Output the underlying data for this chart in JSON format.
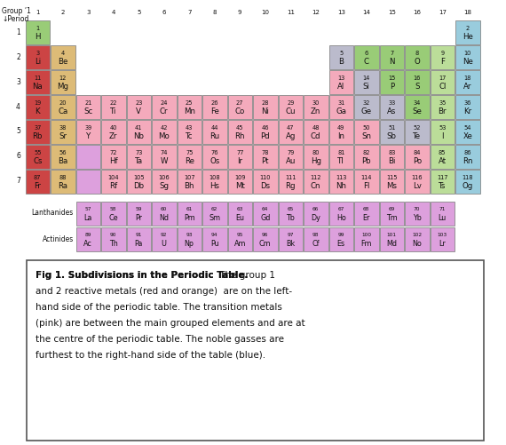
{
  "colors": {
    "group1": "#cc4444",
    "group2": "#ddbb77",
    "transition": "#f4aabc",
    "lanthanide_actinide": "#dda0dd",
    "nonmetal": "#99cc77",
    "halogen": "#bbdd99",
    "noble_gas": "#99ccdd",
    "metalloid": "#bbbbcc",
    "other_metal": "#f4aabc",
    "empty": "#ffffff"
  },
  "elements": [
    {
      "num": 1,
      "sym": "H",
      "period": 1,
      "group": 1,
      "color": "nonmetal"
    },
    {
      "num": 2,
      "sym": "He",
      "period": 1,
      "group": 18,
      "color": "noble_gas"
    },
    {
      "num": 3,
      "sym": "Li",
      "period": 2,
      "group": 1,
      "color": "group1"
    },
    {
      "num": 4,
      "sym": "Be",
      "period": 2,
      "group": 2,
      "color": "group2"
    },
    {
      "num": 5,
      "sym": "B",
      "period": 2,
      "group": 13,
      "color": "metalloid"
    },
    {
      "num": 6,
      "sym": "C",
      "period": 2,
      "group": 14,
      "color": "nonmetal"
    },
    {
      "num": 7,
      "sym": "N",
      "period": 2,
      "group": 15,
      "color": "nonmetal"
    },
    {
      "num": 8,
      "sym": "O",
      "period": 2,
      "group": 16,
      "color": "nonmetal"
    },
    {
      "num": 9,
      "sym": "F",
      "period": 2,
      "group": 17,
      "color": "halogen"
    },
    {
      "num": 10,
      "sym": "Ne",
      "period": 2,
      "group": 18,
      "color": "noble_gas"
    },
    {
      "num": 11,
      "sym": "Na",
      "period": 3,
      "group": 1,
      "color": "group1"
    },
    {
      "num": 12,
      "sym": "Mg",
      "period": 3,
      "group": 2,
      "color": "group2"
    },
    {
      "num": 13,
      "sym": "Al",
      "period": 3,
      "group": 13,
      "color": "other_metal"
    },
    {
      "num": 14,
      "sym": "Si",
      "period": 3,
      "group": 14,
      "color": "metalloid"
    },
    {
      "num": 15,
      "sym": "P",
      "period": 3,
      "group": 15,
      "color": "nonmetal"
    },
    {
      "num": 16,
      "sym": "S",
      "period": 3,
      "group": 16,
      "color": "nonmetal"
    },
    {
      "num": 17,
      "sym": "Cl",
      "period": 3,
      "group": 17,
      "color": "halogen"
    },
    {
      "num": 18,
      "sym": "Ar",
      "period": 3,
      "group": 18,
      "color": "noble_gas"
    },
    {
      "num": 19,
      "sym": "K",
      "period": 4,
      "group": 1,
      "color": "group1"
    },
    {
      "num": 20,
      "sym": "Ca",
      "period": 4,
      "group": 2,
      "color": "group2"
    },
    {
      "num": 21,
      "sym": "Sc",
      "period": 4,
      "group": 3,
      "color": "transition"
    },
    {
      "num": 22,
      "sym": "Ti",
      "period": 4,
      "group": 4,
      "color": "transition"
    },
    {
      "num": 23,
      "sym": "V",
      "period": 4,
      "group": 5,
      "color": "transition"
    },
    {
      "num": 24,
      "sym": "Cr",
      "period": 4,
      "group": 6,
      "color": "transition"
    },
    {
      "num": 25,
      "sym": "Mn",
      "period": 4,
      "group": 7,
      "color": "transition"
    },
    {
      "num": 26,
      "sym": "Fe",
      "period": 4,
      "group": 8,
      "color": "transition"
    },
    {
      "num": 27,
      "sym": "Co",
      "period": 4,
      "group": 9,
      "color": "transition"
    },
    {
      "num": 28,
      "sym": "Ni",
      "period": 4,
      "group": 10,
      "color": "transition"
    },
    {
      "num": 29,
      "sym": "Cu",
      "period": 4,
      "group": 11,
      "color": "transition"
    },
    {
      "num": 30,
      "sym": "Zn",
      "period": 4,
      "group": 12,
      "color": "transition"
    },
    {
      "num": 31,
      "sym": "Ga",
      "period": 4,
      "group": 13,
      "color": "other_metal"
    },
    {
      "num": 32,
      "sym": "Ge",
      "period": 4,
      "group": 14,
      "color": "metalloid"
    },
    {
      "num": 33,
      "sym": "As",
      "period": 4,
      "group": 15,
      "color": "metalloid"
    },
    {
      "num": 34,
      "sym": "Se",
      "period": 4,
      "group": 16,
      "color": "nonmetal"
    },
    {
      "num": 35,
      "sym": "Br",
      "period": 4,
      "group": 17,
      "color": "halogen"
    },
    {
      "num": 36,
      "sym": "Kr",
      "period": 4,
      "group": 18,
      "color": "noble_gas"
    },
    {
      "num": 37,
      "sym": "Rb",
      "period": 5,
      "group": 1,
      "color": "group1"
    },
    {
      "num": 38,
      "sym": "Sr",
      "period": 5,
      "group": 2,
      "color": "group2"
    },
    {
      "num": 39,
      "sym": "Y",
      "period": 5,
      "group": 3,
      "color": "transition"
    },
    {
      "num": 40,
      "sym": "Zr",
      "period": 5,
      "group": 4,
      "color": "transition"
    },
    {
      "num": 41,
      "sym": "Nb",
      "period": 5,
      "group": 5,
      "color": "transition"
    },
    {
      "num": 42,
      "sym": "Mo",
      "period": 5,
      "group": 6,
      "color": "transition"
    },
    {
      "num": 43,
      "sym": "Tc",
      "period": 5,
      "group": 7,
      "color": "transition"
    },
    {
      "num": 44,
      "sym": "Ru",
      "period": 5,
      "group": 8,
      "color": "transition"
    },
    {
      "num": 45,
      "sym": "Rh",
      "period": 5,
      "group": 9,
      "color": "transition"
    },
    {
      "num": 46,
      "sym": "Pd",
      "period": 5,
      "group": 10,
      "color": "transition"
    },
    {
      "num": 47,
      "sym": "Ag",
      "period": 5,
      "group": 11,
      "color": "transition"
    },
    {
      "num": 48,
      "sym": "Cd",
      "period": 5,
      "group": 12,
      "color": "transition"
    },
    {
      "num": 49,
      "sym": "In",
      "period": 5,
      "group": 13,
      "color": "other_metal"
    },
    {
      "num": 50,
      "sym": "Sn",
      "period": 5,
      "group": 14,
      "color": "other_metal"
    },
    {
      "num": 51,
      "sym": "Sb",
      "period": 5,
      "group": 15,
      "color": "metalloid"
    },
    {
      "num": 52,
      "sym": "Te",
      "period": 5,
      "group": 16,
      "color": "metalloid"
    },
    {
      "num": 53,
      "sym": "I",
      "period": 5,
      "group": 17,
      "color": "halogen"
    },
    {
      "num": 54,
      "sym": "Xe",
      "period": 5,
      "group": 18,
      "color": "noble_gas"
    },
    {
      "num": 55,
      "sym": "Cs",
      "period": 6,
      "group": 1,
      "color": "group1"
    },
    {
      "num": 56,
      "sym": "Ba",
      "period": 6,
      "group": 2,
      "color": "group2"
    },
    {
      "num": -1,
      "sym": "",
      "period": 6,
      "group": 3,
      "color": "lanthanide_actinide"
    },
    {
      "num": 72,
      "sym": "Hf",
      "period": 6,
      "group": 4,
      "color": "transition"
    },
    {
      "num": 73,
      "sym": "Ta",
      "period": 6,
      "group": 5,
      "color": "transition"
    },
    {
      "num": 74,
      "sym": "W",
      "period": 6,
      "group": 6,
      "color": "transition"
    },
    {
      "num": 75,
      "sym": "Re",
      "period": 6,
      "group": 7,
      "color": "transition"
    },
    {
      "num": 76,
      "sym": "Os",
      "period": 6,
      "group": 8,
      "color": "transition"
    },
    {
      "num": 77,
      "sym": "Ir",
      "period": 6,
      "group": 9,
      "color": "transition"
    },
    {
      "num": 78,
      "sym": "Pt",
      "period": 6,
      "group": 10,
      "color": "transition"
    },
    {
      "num": 79,
      "sym": "Au",
      "period": 6,
      "group": 11,
      "color": "transition"
    },
    {
      "num": 80,
      "sym": "Hg",
      "period": 6,
      "group": 12,
      "color": "transition"
    },
    {
      "num": 81,
      "sym": "Tl",
      "period": 6,
      "group": 13,
      "color": "other_metal"
    },
    {
      "num": 82,
      "sym": "Pb",
      "period": 6,
      "group": 14,
      "color": "other_metal"
    },
    {
      "num": 83,
      "sym": "Bi",
      "period": 6,
      "group": 15,
      "color": "other_metal"
    },
    {
      "num": 84,
      "sym": "Po",
      "period": 6,
      "group": 16,
      "color": "other_metal"
    },
    {
      "num": 85,
      "sym": "At",
      "period": 6,
      "group": 17,
      "color": "halogen"
    },
    {
      "num": 86,
      "sym": "Rn",
      "period": 6,
      "group": 18,
      "color": "noble_gas"
    },
    {
      "num": 87,
      "sym": "Fr",
      "period": 7,
      "group": 1,
      "color": "group1"
    },
    {
      "num": 88,
      "sym": "Ra",
      "period": 7,
      "group": 2,
      "color": "group2"
    },
    {
      "num": -2,
      "sym": "",
      "period": 7,
      "group": 3,
      "color": "lanthanide_actinide"
    },
    {
      "num": 104,
      "sym": "Rf",
      "period": 7,
      "group": 4,
      "color": "transition"
    },
    {
      "num": 105,
      "sym": "Db",
      "period": 7,
      "group": 5,
      "color": "transition"
    },
    {
      "num": 106,
      "sym": "Sg",
      "period": 7,
      "group": 6,
      "color": "transition"
    },
    {
      "num": 107,
      "sym": "Bh",
      "period": 7,
      "group": 7,
      "color": "transition"
    },
    {
      "num": 108,
      "sym": "Hs",
      "period": 7,
      "group": 8,
      "color": "transition"
    },
    {
      "num": 109,
      "sym": "Mt",
      "period": 7,
      "group": 9,
      "color": "transition"
    },
    {
      "num": 110,
      "sym": "Ds",
      "period": 7,
      "group": 10,
      "color": "transition"
    },
    {
      "num": 111,
      "sym": "Rg",
      "period": 7,
      "group": 11,
      "color": "transition"
    },
    {
      "num": 112,
      "sym": "Cn",
      "period": 7,
      "group": 12,
      "color": "transition"
    },
    {
      "num": 113,
      "sym": "Nh",
      "period": 7,
      "group": 13,
      "color": "other_metal"
    },
    {
      "num": 114,
      "sym": "Fl",
      "period": 7,
      "group": 14,
      "color": "other_metal"
    },
    {
      "num": 115,
      "sym": "Ms",
      "period": 7,
      "group": 15,
      "color": "other_metal"
    },
    {
      "num": 116,
      "sym": "Lv",
      "period": 7,
      "group": 16,
      "color": "other_metal"
    },
    {
      "num": 117,
      "sym": "Ts",
      "period": 7,
      "group": 17,
      "color": "halogen"
    },
    {
      "num": 118,
      "sym": "Og",
      "period": 7,
      "group": 18,
      "color": "noble_gas"
    },
    {
      "num": 57,
      "sym": "La",
      "period": "La",
      "group": 1,
      "color": "lanthanide_actinide"
    },
    {
      "num": 58,
      "sym": "Ce",
      "period": "La",
      "group": 2,
      "color": "lanthanide_actinide"
    },
    {
      "num": 59,
      "sym": "Pr",
      "period": "La",
      "group": 3,
      "color": "lanthanide_actinide"
    },
    {
      "num": 60,
      "sym": "Nd",
      "period": "La",
      "group": 4,
      "color": "lanthanide_actinide"
    },
    {
      "num": 61,
      "sym": "Pm",
      "period": "La",
      "group": 5,
      "color": "lanthanide_actinide"
    },
    {
      "num": 62,
      "sym": "Sm",
      "period": "La",
      "group": 6,
      "color": "lanthanide_actinide"
    },
    {
      "num": 63,
      "sym": "Eu",
      "period": "La",
      "group": 7,
      "color": "lanthanide_actinide"
    },
    {
      "num": 64,
      "sym": "Gd",
      "period": "La",
      "group": 8,
      "color": "lanthanide_actinide"
    },
    {
      "num": 65,
      "sym": "Tb",
      "period": "La",
      "group": 9,
      "color": "lanthanide_actinide"
    },
    {
      "num": 66,
      "sym": "Dy",
      "period": "La",
      "group": 10,
      "color": "lanthanide_actinide"
    },
    {
      "num": 67,
      "sym": "Ho",
      "period": "La",
      "group": 11,
      "color": "lanthanide_actinide"
    },
    {
      "num": 68,
      "sym": "Er",
      "period": "La",
      "group": 12,
      "color": "lanthanide_actinide"
    },
    {
      "num": 69,
      "sym": "Tm",
      "period": "La",
      "group": 13,
      "color": "lanthanide_actinide"
    },
    {
      "num": 70,
      "sym": "Yb",
      "period": "La",
      "group": 14,
      "color": "lanthanide_actinide"
    },
    {
      "num": 71,
      "sym": "Lu",
      "period": "La",
      "group": 15,
      "color": "lanthanide_actinide"
    },
    {
      "num": 89,
      "sym": "Ac",
      "period": "Ac",
      "group": 1,
      "color": "lanthanide_actinide"
    },
    {
      "num": 90,
      "sym": "Th",
      "period": "Ac",
      "group": 2,
      "color": "lanthanide_actinide"
    },
    {
      "num": 91,
      "sym": "Pa",
      "period": "Ac",
      "group": 3,
      "color": "lanthanide_actinide"
    },
    {
      "num": 92,
      "sym": "U",
      "period": "Ac",
      "group": 4,
      "color": "lanthanide_actinide"
    },
    {
      "num": 93,
      "sym": "Np",
      "period": "Ac",
      "group": 5,
      "color": "lanthanide_actinide"
    },
    {
      "num": 94,
      "sym": "Pu",
      "period": "Ac",
      "group": 6,
      "color": "lanthanide_actinide"
    },
    {
      "num": 95,
      "sym": "Am",
      "period": "Ac",
      "group": 7,
      "color": "lanthanide_actinide"
    },
    {
      "num": 96,
      "sym": "Cm",
      "period": "Ac",
      "group": 8,
      "color": "lanthanide_actinide"
    },
    {
      "num": 97,
      "sym": "Bk",
      "period": "Ac",
      "group": 9,
      "color": "lanthanide_actinide"
    },
    {
      "num": 98,
      "sym": "Cf",
      "period": "Ac",
      "group": 10,
      "color": "lanthanide_actinide"
    },
    {
      "num": 99,
      "sym": "Es",
      "period": "Ac",
      "group": 11,
      "color": "lanthanide_actinide"
    },
    {
      "num": 100,
      "sym": "Fm",
      "period": "Ac",
      "group": 12,
      "color": "lanthanide_actinide"
    },
    {
      "num": 101,
      "sym": "Md",
      "period": "Ac",
      "group": 13,
      "color": "lanthanide_actinide"
    },
    {
      "num": 102,
      "sym": "No",
      "period": "Ac",
      "group": 14,
      "color": "lanthanide_actinide"
    },
    {
      "num": 103,
      "sym": "Lr",
      "period": "Ac",
      "group": 15,
      "color": "lanthanide_actinide"
    }
  ],
  "caption_bold": "Fig 1. Subdivisions in the Periodic Table.",
  "caption_normal": " The group 1 and 2 reactive metals (red and orange)  are on the left-hand side of the periodic table. The transition metals (pink) are between the main grouped elements and are at the centre of the periodic table. The noble gasses are furthest to the right-hand side of the table (blue).",
  "header_group": "Group ’1",
  "header_period": "↓Period",
  "bg_color": "#ffffff"
}
